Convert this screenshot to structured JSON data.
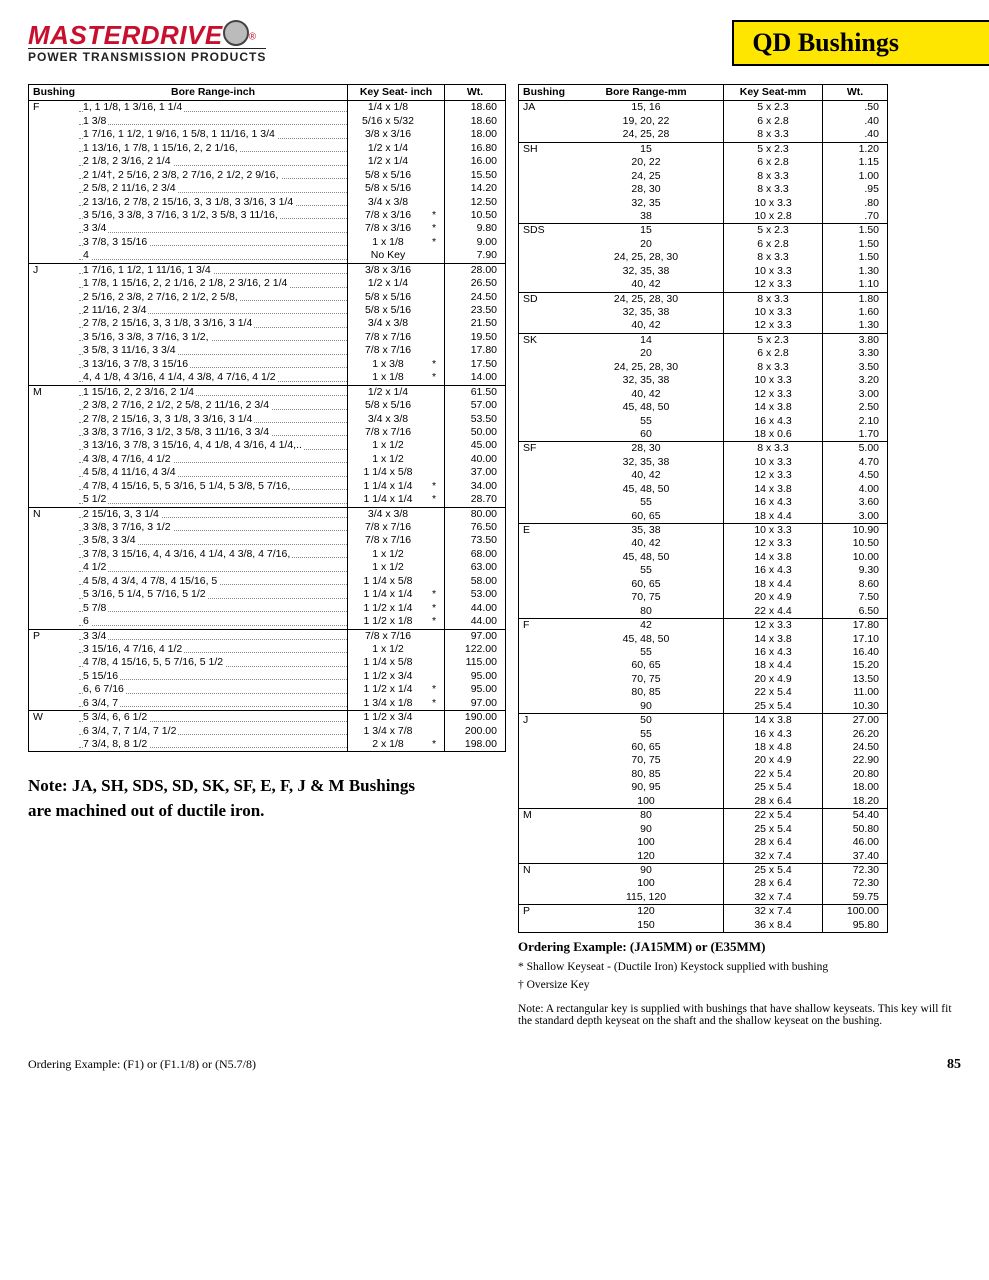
{
  "brand": {
    "name": "MASTERDRIVE",
    "tagline": "POWER TRANSMISSION PRODUCTS"
  },
  "page_title": "QD Bushings",
  "page_number": "85",
  "table_inch": {
    "headers": {
      "bushing": "Bushing",
      "bore": "Bore Range-inch",
      "key": "Key Seat- inch",
      "wt": "Wt."
    },
    "groups": [
      {
        "b": "F",
        "rows": [
          {
            "bore": "1, 1 1/8, 1 3/16, 1 1/4",
            "key": "1/4  x  1/8",
            "wt": "18.60"
          },
          {
            "bore": "1 3/8",
            "key": "5/16  x  5/32",
            "wt": "18.60"
          },
          {
            "bore": "1 7/16, 1 1/2, 1 9/16, 1 5/8, 1 11/16, 1 3/4",
            "key": "3/8  x  3/16",
            "wt": "18.00"
          },
          {
            "bore": "1 13/16, 1 7/8, 1 15/16, 2, 2 1/16,",
            "key": "1/2  x  1/4",
            "wt": "16.80"
          },
          {
            "bore": "2 1/8, 2 3/16, 2 1/4",
            "key": "1/2  x  1/4",
            "wt": "16.00"
          },
          {
            "bore": "2 1/4†, 2 5/16, 2 3/8, 2 7/16, 2 1/2, 2 9/16,",
            "key": "5/8  x  5/16",
            "wt": "15.50"
          },
          {
            "bore": "2 5/8, 2 11/16, 2 3/4",
            "key": "5/8  x  5/16",
            "wt": "14.20"
          },
          {
            "bore": "2 13/16, 2 7/8, 2 15/16, 3, 3 1/8, 3 3/16, 3 1/4",
            "key": "3/4  x  3/8",
            "wt": "12.50"
          },
          {
            "bore": "3 5/16, 3 3/8, 3 7/16, 3 1/2, 3 5/8, 3 11/16,",
            "key": "7/8  x  3/16",
            "n": "*",
            "wt": "10.50"
          },
          {
            "bore": "3 3/4",
            "key": "7/8  x  3/16",
            "n": "*",
            "wt": "9.80"
          },
          {
            "bore": "3 7/8, 3 15/16",
            "key": "1  x  1/8",
            "n": "*",
            "wt": "9.00"
          },
          {
            "bore": "4",
            "key": "No Key",
            "wt": "7.90"
          }
        ]
      },
      {
        "b": "J",
        "rows": [
          {
            "bore": "1 7/16, 1 1/2, 1 11/16, 1 3/4",
            "key": "3/8  x  3/16",
            "wt": "28.00"
          },
          {
            "bore": "1 7/8, 1 15/16, 2, 2 1/16, 2 1/8, 2 3/16, 2 1/4",
            "key": "1/2  x  1/4",
            "wt": "26.50"
          },
          {
            "bore": "2 5/16, 2 3/8, 2 7/16, 2 1/2, 2 5/8,",
            "key": "5/8  x  5/16",
            "wt": "24.50"
          },
          {
            "bore": "2 11/16, 2 3/4",
            "key": "5/8  x  5/16",
            "wt": "23.50"
          },
          {
            "bore": "2 7/8, 2 15/16, 3, 3 1/8, 3 3/16, 3 1/4",
            "key": "3/4  x  3/8",
            "wt": "21.50"
          },
          {
            "bore": "3 5/16, 3 3/8, 3 7/16, 3 1/2,",
            "key": "7/8  x  7/16",
            "wt": "19.50"
          },
          {
            "bore": "3 5/8, 3 11/16, 3 3/4",
            "key": "7/8  x  7/16",
            "wt": "17.80"
          },
          {
            "bore": "3 13/16, 3 7/8, 3 15/16",
            "key": "1  x  3/8",
            "n": "*",
            "wt": "17.50"
          },
          {
            "bore": "4, 4 1/8, 4 3/16, 4 1/4, 4 3/8, 4 7/16, 4 1/2",
            "key": "1  x  1/8",
            "n": "*",
            "wt": "14.00"
          }
        ]
      },
      {
        "b": "M",
        "rows": [
          {
            "bore": "1 15/16, 2, 2 3/16, 2 1/4",
            "key": "1/2  x  1/4",
            "wt": "61.50"
          },
          {
            "bore": "2 3/8, 2 7/16, 2 1/2, 2 5/8, 2 11/16, 2 3/4",
            "key": "5/8  x  5/16",
            "wt": "57.00"
          },
          {
            "bore": "2 7/8, 2 15/16, 3, 3 1/8, 3 3/16, 3 1/4",
            "key": "3/4  x  3/8",
            "wt": "53.50"
          },
          {
            "bore": "3 3/8, 3 7/16, 3 1/2, 3 5/8, 3 11/16, 3 3/4",
            "key": "7/8  x  7/16",
            "wt": "50.00"
          },
          {
            "bore": "3 13/16, 3 7/8, 3 15/16, 4, 4 1/8, 4 3/16, 4 1/4,..",
            "key": "1  x  1/2",
            "wt": "45.00"
          },
          {
            "bore": "4 3/8, 4 7/16, 4 1/2",
            "key": "1  x  1/2",
            "wt": "40.00"
          },
          {
            "bore": "4 5/8, 4 11/16, 4 3/4",
            "key": "1 1/4 x  5/8",
            "wt": "37.00"
          },
          {
            "bore": "4 7/8, 4 15/16, 5, 5 3/16, 5 1/4, 5 3/8, 5 7/16,",
            "key": "1 1/4 x  1/4",
            "n": "*",
            "wt": "34.00"
          },
          {
            "bore": "5 1/2",
            "key": "1 1/4 x  1/4",
            "n": "*",
            "wt": "28.70"
          }
        ]
      },
      {
        "b": "N",
        "rows": [
          {
            "bore": "2 15/16, 3, 3 1/4",
            "key": "3/4  x  3/8",
            "wt": "80.00"
          },
          {
            "bore": "3 3/8, 3 7/16, 3 1/2",
            "key": "7/8  x  7/16",
            "wt": "76.50"
          },
          {
            "bore": "3 5/8, 3 3/4",
            "key": "7/8  x  7/16",
            "wt": "73.50"
          },
          {
            "bore": "3 7/8, 3 15/16, 4, 4 3/16, 4 1/4, 4 3/8, 4 7/16,",
            "key": "1  x  1/2",
            "wt": "68.00"
          },
          {
            "bore": "4 1/2",
            "key": "1  x  1/2",
            "wt": "63.00"
          },
          {
            "bore": "4 5/8, 4 3/4, 4 7/8, 4 15/16, 5",
            "key": "1 1/4 x  5/8",
            "wt": "58.00"
          },
          {
            "bore": "5 3/16, 5 1/4, 5 7/16, 5 1/2",
            "key": "1 1/4 x  1/4",
            "n": "*",
            "wt": "53.00"
          },
          {
            "bore": "5 7/8",
            "key": "1 1/2 x  1/4",
            "n": "*",
            "wt": "44.00"
          },
          {
            "bore": "6",
            "key": "1 1/2 x  1/8",
            "n": "*",
            "wt": "44.00"
          }
        ]
      },
      {
        "b": "P",
        "rows": [
          {
            "bore": "3 3/4",
            "key": "7/8  x  7/16",
            "wt": "97.00"
          },
          {
            "bore": "3 15/16, 4 7/16, 4 1/2",
            "key": "1  x  1/2",
            "wt": "122.00"
          },
          {
            "bore": "4 7/8, 4 15/16, 5, 5 7/16, 5 1/2",
            "key": "1 1/4 x  5/8",
            "wt": "115.00"
          },
          {
            "bore": "5 15/16",
            "key": "1 1/2 x  3/4",
            "wt": "95.00"
          },
          {
            "bore": "6, 6 7/16",
            "key": "1 1/2 x  1/4",
            "n": "*",
            "wt": "95.00"
          },
          {
            "bore": "6 3/4, 7",
            "key": "1 3/4 x  1/8",
            "n": "*",
            "wt": "97.00"
          }
        ]
      },
      {
        "b": "W",
        "rows": [
          {
            "bore": "5 3/4, 6, 6 1/2",
            "key": "1 1/2 x  3/4",
            "wt": "190.00"
          },
          {
            "bore": "6 3/4, 7, 7 1/4, 7 1/2",
            "key": "1 3/4 x  7/8",
            "wt": "200.00"
          },
          {
            "bore": "7 3/4, 8, 8 1/2",
            "key": "2  x  1/8",
            "n": "*",
            "wt": "198.00"
          }
        ]
      }
    ]
  },
  "table_mm": {
    "headers": {
      "bushing": "Bushing",
      "bore": "Bore Range-mm",
      "key": "Key Seat-mm",
      "wt": "Wt."
    },
    "groups": [
      {
        "b": "JA",
        "rows": [
          {
            "bore": "15, 16",
            "key": "5  x  2.3",
            "wt": ".50"
          },
          {
            "bore": "19, 20, 22",
            "key": "6  x  2.8",
            "wt": ".40"
          },
          {
            "bore": "24, 25, 28",
            "key": "8  x  3.3",
            "wt": ".40"
          }
        ]
      },
      {
        "b": "SH",
        "rows": [
          {
            "bore": "15",
            "key": "5  x  2.3",
            "wt": "1.20"
          },
          {
            "bore": "20, 22",
            "key": "6  x  2.8",
            "wt": "1.15"
          },
          {
            "bore": "24, 25",
            "key": "8  x  3.3",
            "wt": "1.00"
          },
          {
            "bore": "28, 30",
            "key": "8  x  3.3",
            "wt": ".95"
          },
          {
            "bore": "32, 35",
            "key": "10  x  3.3",
            "wt": ".80"
          },
          {
            "bore": "38",
            "key": "10  x  2.8",
            "wt": ".70"
          }
        ]
      },
      {
        "b": "SDS",
        "rows": [
          {
            "bore": "15",
            "key": "5  x  2.3",
            "wt": "1.50"
          },
          {
            "bore": "20",
            "key": "6  x  2.8",
            "wt": "1.50"
          },
          {
            "bore": "24, 25, 28, 30",
            "key": "8  x  3.3",
            "wt": "1.50"
          },
          {
            "bore": "32, 35, 38",
            "key": "10  x  3.3",
            "wt": "1.30"
          },
          {
            "bore": "40, 42",
            "key": "12  x  3.3",
            "wt": "1.10"
          }
        ]
      },
      {
        "b": "SD",
        "rows": [
          {
            "bore": "24, 25, 28, 30",
            "key": "8  x  3.3",
            "wt": "1.80"
          },
          {
            "bore": "32, 35, 38",
            "key": "10  x  3.3",
            "wt": "1.60"
          },
          {
            "bore": "40, 42",
            "key": "12  x  3.3",
            "wt": "1.30"
          }
        ]
      },
      {
        "b": "SK",
        "rows": [
          {
            "bore": "14",
            "key": "5  x  2.3",
            "wt": "3.80"
          },
          {
            "bore": "20",
            "key": "6  x  2.8",
            "wt": "3.30"
          },
          {
            "bore": "24, 25, 28, 30",
            "key": "8  x  3.3",
            "wt": "3.50"
          },
          {
            "bore": "32, 35, 38",
            "key": "10  x  3.3",
            "wt": "3.20"
          },
          {
            "bore": "40, 42",
            "key": "12  x  3.3",
            "wt": "3.00"
          },
          {
            "bore": "45, 48, 50",
            "key": "14  x  3.8",
            "wt": "2.50"
          },
          {
            "bore": "55",
            "key": "16  x  4.3",
            "wt": "2.10"
          },
          {
            "bore": "60",
            "key": "18  x  0.6",
            "wt": "1.70"
          }
        ]
      },
      {
        "b": "SF",
        "rows": [
          {
            "bore": "28, 30",
            "key": "8  x  3.3",
            "wt": "5.00"
          },
          {
            "bore": "32, 35, 38",
            "key": "10  x  3.3",
            "wt": "4.70"
          },
          {
            "bore": "40, 42",
            "key": "12  x  3.3",
            "wt": "4.50"
          },
          {
            "bore": "45, 48, 50",
            "key": "14  x  3.8",
            "wt": "4.00"
          },
          {
            "bore": "55",
            "key": "16  x  4.3",
            "wt": "3.60"
          },
          {
            "bore": "60, 65",
            "key": "18  x  4.4",
            "wt": "3.00"
          }
        ]
      },
      {
        "b": "E",
        "rows": [
          {
            "bore": "35, 38",
            "key": "10  x  3.3",
            "wt": "10.90"
          },
          {
            "bore": "40, 42",
            "key": "12  x  3.3",
            "wt": "10.50"
          },
          {
            "bore": "45, 48, 50",
            "key": "14  x  3.8",
            "wt": "10.00"
          },
          {
            "bore": "55",
            "key": "16  x  4.3",
            "wt": "9.30"
          },
          {
            "bore": "60, 65",
            "key": "18  x  4.4",
            "wt": "8.60"
          },
          {
            "bore": "70, 75",
            "key": "20  x  4.9",
            "wt": "7.50"
          },
          {
            "bore": "80",
            "key": "22  x  4.4",
            "wt": "6.50"
          }
        ]
      },
      {
        "b": "F",
        "rows": [
          {
            "bore": "42",
            "key": "12  x  3.3",
            "wt": "17.80"
          },
          {
            "bore": "45, 48, 50",
            "key": "14  x  3.8",
            "wt": "17.10"
          },
          {
            "bore": "55",
            "key": "16  x  4.3",
            "wt": "16.40"
          },
          {
            "bore": "60, 65",
            "key": "18  x  4.4",
            "wt": "15.20"
          },
          {
            "bore": "70, 75",
            "key": "20  x  4.9",
            "wt": "13.50"
          },
          {
            "bore": "80, 85",
            "key": "22  x  5.4",
            "wt": "11.00"
          },
          {
            "bore": "90",
            "key": "25  x  5.4",
            "wt": "10.30"
          }
        ]
      },
      {
        "b": "J",
        "rows": [
          {
            "bore": "50",
            "key": "14  x  3.8",
            "wt": "27.00"
          },
          {
            "bore": "55",
            "key": "16  x  4.3",
            "wt": "26.20"
          },
          {
            "bore": "60, 65",
            "key": "18  x  4.8",
            "wt": "24.50"
          },
          {
            "bore": "70, 75",
            "key": "20  x  4.9",
            "wt": "22.90"
          },
          {
            "bore": "80, 85",
            "key": "22  x  5.4",
            "wt": "20.80"
          },
          {
            "bore": "90, 95",
            "key": "25  x  5.4",
            "wt": "18.00"
          },
          {
            "bore": "100",
            "key": "28  x  6.4",
            "wt": "18.20"
          }
        ]
      },
      {
        "b": "M",
        "rows": [
          {
            "bore": "80",
            "key": "22  x  5.4",
            "wt": "54.40"
          },
          {
            "bore": "90",
            "key": "25  x  5.4",
            "wt": "50.80"
          },
          {
            "bore": "100",
            "key": "28  x  6.4",
            "wt": "46.00"
          },
          {
            "bore": "120",
            "key": "32  x  7.4",
            "wt": "37.40"
          }
        ]
      },
      {
        "b": "N",
        "rows": [
          {
            "bore": "90",
            "key": "25  x  5.4",
            "wt": "72.30"
          },
          {
            "bore": "100",
            "key": "28  x  6.4",
            "wt": "72.30"
          },
          {
            "bore": "115, 120",
            "key": "32  x  7.4",
            "wt": "59.75"
          }
        ]
      },
      {
        "b": "P",
        "rows": [
          {
            "bore": "120",
            "key": "32  x  7.4",
            "wt": "100.00"
          },
          {
            "bore": "150",
            "key": "36  x  8.4",
            "wt": "95.80"
          }
        ]
      }
    ]
  },
  "note_text": "Note: JA, SH, SDS, SD, SK, SF, E, F, J & M Bushings are machined out of ductile iron.",
  "ordering_mm": "Ordering Example:   (JA15MM)  or (E35MM)",
  "foot_shallow": "*  Shallow Keyseat - (Ductile Iron) Keystock supplied with bushing",
  "foot_oversize": "†  Oversize Key",
  "foot_note": "Note:   A rectangular key is supplied with bushings that have shallow keyseats. This key will fit the standard depth keyseat on the shaft and the shallow keyseat on the bushing.",
  "ordering_in": "Ordering Example:   (F1)  or (F1.1/8)  or  (N5.7/8)"
}
